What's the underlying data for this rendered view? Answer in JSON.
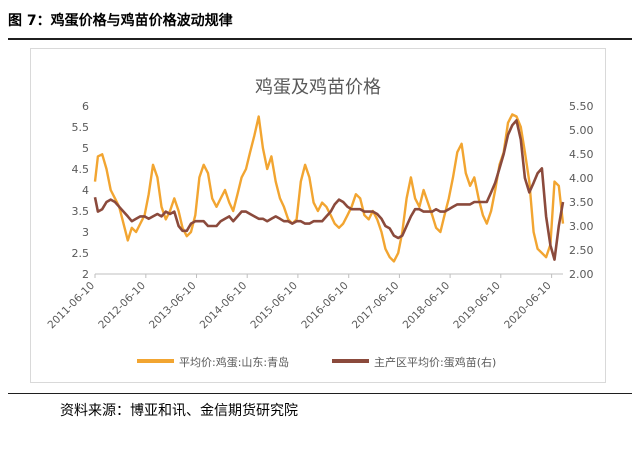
{
  "figure": {
    "title": "图 7：鸡蛋价格与鸡苗价格波动规律",
    "source": "资料来源：博亚和讯、金信期货研究院"
  },
  "colors": {
    "egg": "#F2A531",
    "chick": "#8B4A3C",
    "axis_text": "#595959",
    "axis_line": "#bfbfbf"
  },
  "chart_data": {
    "type": "line",
    "title": "鸡蛋及鸡苗价格",
    "x_tick_labels": [
      "2011-06-10",
      "2012-06-10",
      "2013-06-10",
      "2014-06-10",
      "2015-06-10",
      "2016-06-10",
      "2017-06-10",
      "2018-06-10",
      "2019-06-10",
      "2020-06-10"
    ],
    "x_range": [
      "2011-06-10",
      "2020-08-31"
    ],
    "y_left": {
      "range": [
        2,
        6
      ],
      "ticks": [
        "2",
        "2.5",
        "3",
        "3.5",
        "4",
        "4.5",
        "5",
        "5.5",
        "6"
      ]
    },
    "y_right": {
      "range": [
        2.0,
        5.5
      ],
      "ticks": [
        "2.00",
        "2.50",
        "3.00",
        "3.50",
        "4.00",
        "4.50",
        "5.00",
        "5.50"
      ]
    },
    "grid": false,
    "legend_position": "bottom",
    "series": [
      {
        "name": "平均价:鸡蛋:山东:青岛",
        "axis": "left",
        "points": [
          [
            "2011-06-10",
            4.2
          ],
          [
            "2011-07-01",
            4.8
          ],
          [
            "2011-08-01",
            4.85
          ],
          [
            "2011-09-01",
            4.5
          ],
          [
            "2011-10-01",
            4.0
          ],
          [
            "2011-11-01",
            3.8
          ],
          [
            "2011-12-01",
            3.6
          ],
          [
            "2012-01-01",
            3.2
          ],
          [
            "2012-02-01",
            2.8
          ],
          [
            "2012-03-01",
            3.1
          ],
          [
            "2012-04-01",
            3.0
          ],
          [
            "2012-05-01",
            3.2
          ],
          [
            "2012-06-01",
            3.4
          ],
          [
            "2012-07-01",
            3.9
          ],
          [
            "2012-08-01",
            4.6
          ],
          [
            "2012-09-01",
            4.3
          ],
          [
            "2012-10-01",
            3.6
          ],
          [
            "2012-11-01",
            3.3
          ],
          [
            "2012-12-01",
            3.5
          ],
          [
            "2013-01-01",
            3.8
          ],
          [
            "2013-02-01",
            3.5
          ],
          [
            "2013-03-01",
            3.1
          ],
          [
            "2013-04-01",
            2.9
          ],
          [
            "2013-05-01",
            3.0
          ],
          [
            "2013-06-01",
            3.4
          ],
          [
            "2013-07-01",
            4.3
          ],
          [
            "2013-08-01",
            4.6
          ],
          [
            "2013-09-01",
            4.4
          ],
          [
            "2013-10-01",
            3.8
          ],
          [
            "2013-11-01",
            3.6
          ],
          [
            "2013-12-01",
            3.8
          ],
          [
            "2014-01-01",
            4.0
          ],
          [
            "2014-02-01",
            3.7
          ],
          [
            "2014-03-01",
            3.5
          ],
          [
            "2014-04-01",
            3.9
          ],
          [
            "2014-05-01",
            4.3
          ],
          [
            "2014-06-01",
            4.5
          ],
          [
            "2014-07-01",
            4.9
          ],
          [
            "2014-08-01",
            5.3
          ],
          [
            "2014-09-01",
            5.75
          ],
          [
            "2014-10-01",
            5.0
          ],
          [
            "2014-11-01",
            4.5
          ],
          [
            "2014-12-01",
            4.8
          ],
          [
            "2015-01-01",
            4.2
          ],
          [
            "2015-02-01",
            3.8
          ],
          [
            "2015-03-01",
            3.6
          ],
          [
            "2015-04-01",
            3.3
          ],
          [
            "2015-05-01",
            3.2
          ],
          [
            "2015-06-01",
            3.3
          ],
          [
            "2015-07-01",
            4.2
          ],
          [
            "2015-08-01",
            4.6
          ],
          [
            "2015-09-01",
            4.3
          ],
          [
            "2015-10-01",
            3.7
          ],
          [
            "2015-11-01",
            3.5
          ],
          [
            "2015-12-01",
            3.7
          ],
          [
            "2016-01-01",
            3.6
          ],
          [
            "2016-02-01",
            3.4
          ],
          [
            "2016-03-01",
            3.2
          ],
          [
            "2016-04-01",
            3.1
          ],
          [
            "2016-05-01",
            3.2
          ],
          [
            "2016-06-01",
            3.4
          ],
          [
            "2016-07-01",
            3.6
          ],
          [
            "2016-08-01",
            3.9
          ],
          [
            "2016-09-01",
            3.8
          ],
          [
            "2016-10-01",
            3.4
          ],
          [
            "2016-11-01",
            3.3
          ],
          [
            "2016-12-01",
            3.5
          ],
          [
            "2017-01-01",
            3.3
          ],
          [
            "2017-02-01",
            3.0
          ],
          [
            "2017-03-01",
            2.6
          ],
          [
            "2017-04-01",
            2.4
          ],
          [
            "2017-05-01",
            2.3
          ],
          [
            "2017-06-01",
            2.5
          ],
          [
            "2017-07-01",
            3.0
          ],
          [
            "2017-08-01",
            3.8
          ],
          [
            "2017-09-01",
            4.3
          ],
          [
            "2017-10-01",
            3.8
          ],
          [
            "2017-11-01",
            3.6
          ],
          [
            "2017-12-01",
            4.0
          ],
          [
            "2018-01-01",
            3.7
          ],
          [
            "2018-02-01",
            3.4
          ],
          [
            "2018-03-01",
            3.1
          ],
          [
            "2018-04-01",
            3.0
          ],
          [
            "2018-05-01",
            3.4
          ],
          [
            "2018-06-01",
            3.8
          ],
          [
            "2018-07-01",
            4.3
          ],
          [
            "2018-08-01",
            4.9
          ],
          [
            "2018-09-01",
            5.1
          ],
          [
            "2018-10-01",
            4.4
          ],
          [
            "2018-11-01",
            4.1
          ],
          [
            "2018-12-01",
            4.3
          ],
          [
            "2019-01-01",
            3.8
          ],
          [
            "2019-02-01",
            3.4
          ],
          [
            "2019-03-01",
            3.2
          ],
          [
            "2019-04-01",
            3.5
          ],
          [
            "2019-05-01",
            4.0
          ],
          [
            "2019-06-01",
            4.6
          ],
          [
            "2019-07-01",
            4.9
          ],
          [
            "2019-08-01",
            5.6
          ],
          [
            "2019-09-01",
            5.8
          ],
          [
            "2019-10-01",
            5.75
          ],
          [
            "2019-11-01",
            5.5
          ],
          [
            "2019-12-01",
            4.9
          ],
          [
            "2020-01-01",
            4.2
          ],
          [
            "2020-02-01",
            3.0
          ],
          [
            "2020-03-01",
            2.6
          ],
          [
            "2020-04-01",
            2.5
          ],
          [
            "2020-05-01",
            2.4
          ],
          [
            "2020-06-01",
            2.7
          ],
          [
            "2020-07-01",
            4.2
          ],
          [
            "2020-08-01",
            4.1
          ],
          [
            "2020-08-31",
            3.2
          ]
        ]
      },
      {
        "name": "主产区平均价:蛋鸡苗(右)",
        "axis": "right",
        "points": [
          [
            "2011-06-10",
            3.6
          ],
          [
            "2011-07-01",
            3.3
          ],
          [
            "2011-08-01",
            3.35
          ],
          [
            "2011-09-01",
            3.5
          ],
          [
            "2011-10-01",
            3.55
          ],
          [
            "2011-11-01",
            3.5
          ],
          [
            "2011-12-01",
            3.4
          ],
          [
            "2012-01-01",
            3.3
          ],
          [
            "2012-02-01",
            3.2
          ],
          [
            "2012-03-01",
            3.1
          ],
          [
            "2012-04-01",
            3.15
          ],
          [
            "2012-05-01",
            3.2
          ],
          [
            "2012-06-01",
            3.2
          ],
          [
            "2012-07-01",
            3.15
          ],
          [
            "2012-08-01",
            3.2
          ],
          [
            "2012-09-01",
            3.25
          ],
          [
            "2012-10-01",
            3.2
          ],
          [
            "2012-11-01",
            3.3
          ],
          [
            "2012-12-01",
            3.25
          ],
          [
            "2013-01-01",
            3.3
          ],
          [
            "2013-02-01",
            3.0
          ],
          [
            "2013-03-01",
            2.9
          ],
          [
            "2013-04-01",
            2.9
          ],
          [
            "2013-05-01",
            3.05
          ],
          [
            "2013-06-01",
            3.1
          ],
          [
            "2013-07-01",
            3.1
          ],
          [
            "2013-08-01",
            3.1
          ],
          [
            "2013-09-01",
            3.0
          ],
          [
            "2013-10-01",
            3.0
          ],
          [
            "2013-11-01",
            3.0
          ],
          [
            "2013-12-01",
            3.1
          ],
          [
            "2014-01-01",
            3.15
          ],
          [
            "2014-02-01",
            3.2
          ],
          [
            "2014-03-01",
            3.1
          ],
          [
            "2014-04-01",
            3.2
          ],
          [
            "2014-05-01",
            3.3
          ],
          [
            "2014-06-01",
            3.3
          ],
          [
            "2014-07-01",
            3.25
          ],
          [
            "2014-08-01",
            3.2
          ],
          [
            "2014-09-01",
            3.15
          ],
          [
            "2014-10-01",
            3.15
          ],
          [
            "2014-11-01",
            3.1
          ],
          [
            "2014-12-01",
            3.15
          ],
          [
            "2015-01-01",
            3.2
          ],
          [
            "2015-02-01",
            3.15
          ],
          [
            "2015-03-01",
            3.1
          ],
          [
            "2015-04-01",
            3.1
          ],
          [
            "2015-05-01",
            3.05
          ],
          [
            "2015-06-01",
            3.1
          ],
          [
            "2015-07-01",
            3.1
          ],
          [
            "2015-08-01",
            3.05
          ],
          [
            "2015-09-01",
            3.05
          ],
          [
            "2015-10-01",
            3.1
          ],
          [
            "2015-11-01",
            3.1
          ],
          [
            "2015-12-01",
            3.1
          ],
          [
            "2016-01-01",
            3.2
          ],
          [
            "2016-02-01",
            3.3
          ],
          [
            "2016-03-01",
            3.45
          ],
          [
            "2016-04-01",
            3.55
          ],
          [
            "2016-05-01",
            3.5
          ],
          [
            "2016-06-01",
            3.4
          ],
          [
            "2016-07-01",
            3.35
          ],
          [
            "2016-08-01",
            3.35
          ],
          [
            "2016-09-01",
            3.35
          ],
          [
            "2016-10-01",
            3.3
          ],
          [
            "2016-11-01",
            3.3
          ],
          [
            "2016-12-01",
            3.3
          ],
          [
            "2017-01-01",
            3.25
          ],
          [
            "2017-02-01",
            3.15
          ],
          [
            "2017-03-01",
            3.0
          ],
          [
            "2017-04-01",
            2.95
          ],
          [
            "2017-05-01",
            2.8
          ],
          [
            "2017-06-01",
            2.75
          ],
          [
            "2017-07-01",
            2.8
          ],
          [
            "2017-08-01",
            3.0
          ],
          [
            "2017-09-01",
            3.2
          ],
          [
            "2017-10-01",
            3.35
          ],
          [
            "2017-11-01",
            3.35
          ],
          [
            "2017-12-01",
            3.3
          ],
          [
            "2018-01-01",
            3.3
          ],
          [
            "2018-02-01",
            3.3
          ],
          [
            "2018-03-01",
            3.35
          ],
          [
            "2018-04-01",
            3.3
          ],
          [
            "2018-05-01",
            3.3
          ],
          [
            "2018-06-01",
            3.35
          ],
          [
            "2018-07-01",
            3.4
          ],
          [
            "2018-08-01",
            3.45
          ],
          [
            "2018-09-01",
            3.45
          ],
          [
            "2018-10-01",
            3.45
          ],
          [
            "2018-11-01",
            3.45
          ],
          [
            "2018-12-01",
            3.5
          ],
          [
            "2019-01-01",
            3.5
          ],
          [
            "2019-02-01",
            3.5
          ],
          [
            "2019-03-01",
            3.5
          ],
          [
            "2019-04-01",
            3.7
          ],
          [
            "2019-05-01",
            3.9
          ],
          [
            "2019-06-01",
            4.2
          ],
          [
            "2019-07-01",
            4.5
          ],
          [
            "2019-08-01",
            4.9
          ],
          [
            "2019-09-01",
            5.1
          ],
          [
            "2019-10-01",
            5.2
          ],
          [
            "2019-11-01",
            4.8
          ],
          [
            "2019-12-01",
            4.0
          ],
          [
            "2020-01-01",
            3.7
          ],
          [
            "2020-02-01",
            3.9
          ],
          [
            "2020-03-01",
            4.1
          ],
          [
            "2020-04-01",
            4.2
          ],
          [
            "2020-05-01",
            3.2
          ],
          [
            "2020-06-01",
            2.6
          ],
          [
            "2020-07-01",
            2.3
          ],
          [
            "2020-08-01",
            3.0
          ],
          [
            "2020-08-31",
            3.5
          ]
        ]
      }
    ]
  }
}
